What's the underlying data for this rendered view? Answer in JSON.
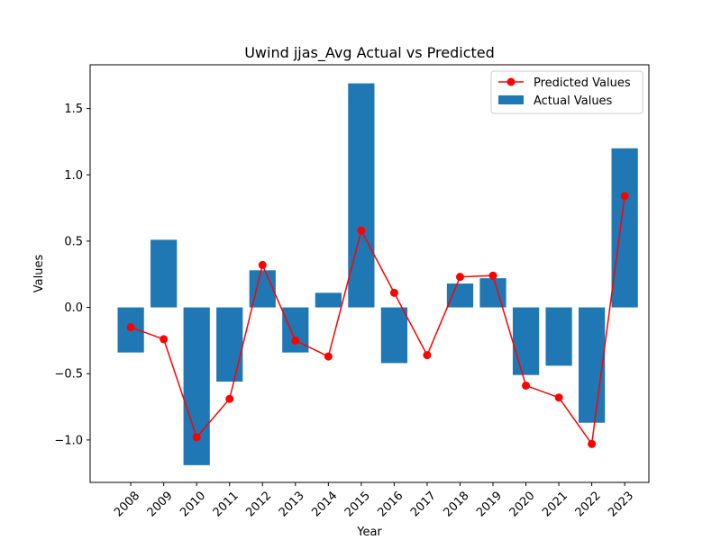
{
  "chart_data": {
    "type": "bar",
    "title": "Uwind jjas_Avg Actual vs Predicted",
    "xlabel": "Year",
    "ylabel": "Values",
    "categories": [
      "2008",
      "2009",
      "2010",
      "2011",
      "2012",
      "2013",
      "2014",
      "2015",
      "2016",
      "2017",
      "2018",
      "2019",
      "2020",
      "2021",
      "2022",
      "2023"
    ],
    "ylim": [
      -1.32,
      1.83
    ],
    "yticks": [
      -1.0,
      -0.5,
      0.0,
      0.5,
      1.0,
      1.5
    ],
    "ytick_labels": [
      "−1.0",
      "−0.5",
      "0.0",
      "0.5",
      "1.0",
      "1.5"
    ],
    "legend_position": "top-right",
    "grid": false,
    "series": [
      {
        "name": "Predicted Values",
        "kind": "line",
        "color": "#ff0000",
        "values": [
          -0.15,
          -0.24,
          -0.98,
          -0.69,
          0.32,
          -0.25,
          -0.37,
          0.58,
          0.11,
          -0.36,
          0.23,
          0.24,
          -0.59,
          -0.68,
          -1.03,
          0.84
        ]
      },
      {
        "name": "Actual Values",
        "kind": "bar",
        "color": "#1f77b4",
        "values": [
          -0.34,
          0.51,
          -1.19,
          -0.56,
          0.28,
          -0.34,
          0.11,
          1.69,
          -0.42,
          0.0,
          0.18,
          0.22,
          -0.51,
          -0.44,
          -0.87,
          1.2
        ]
      }
    ]
  }
}
